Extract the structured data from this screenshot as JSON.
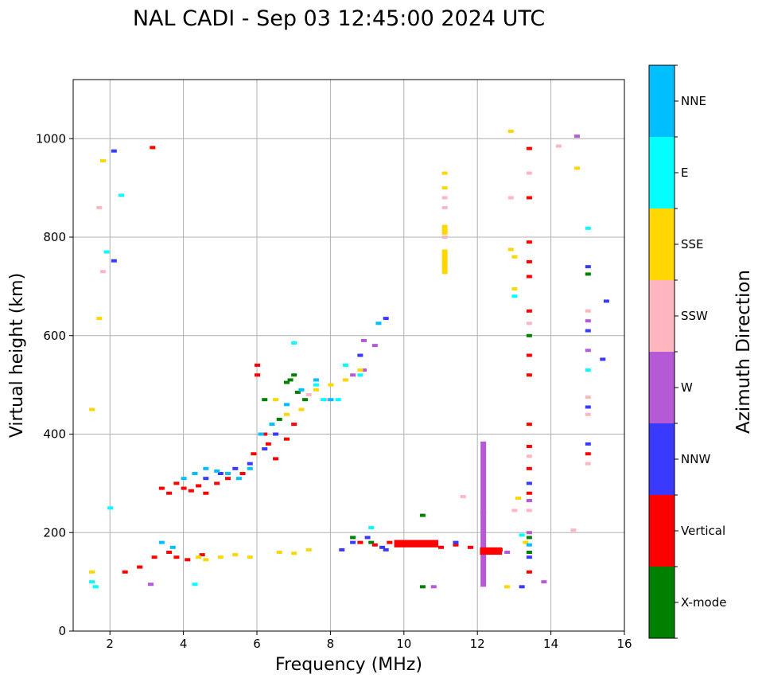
{
  "chart_data": {
    "type": "scatter",
    "title": "NAL CADI - Sep 03 12:45:00 2024 UTC",
    "xlabel": "Frequency (MHz)",
    "ylabel": "Virtual height (km)",
    "xlim": [
      1,
      16
    ],
    "ylim": [
      0,
      1120
    ],
    "xticks": [
      2,
      4,
      6,
      8,
      10,
      12,
      14,
      16
    ],
    "yticks": [
      0,
      200,
      400,
      600,
      800,
      1000
    ],
    "grid": true,
    "colorbar": {
      "title": "Azimuth Direction",
      "categories": [
        {
          "label": "X-mode",
          "color": "#008000"
        },
        {
          "label": "Vertical",
          "color": "#ff0000"
        },
        {
          "label": "NNW",
          "color": "#3a3aff"
        },
        {
          "label": "W",
          "color": "#b659d6"
        },
        {
          "label": "SSW",
          "color": "#ffb6c1"
        },
        {
          "label": "SSE",
          "color": "#ffd700"
        },
        {
          "label": "E",
          "color": "#00ffff"
        },
        {
          "label": "NNE",
          "color": "#00bfff"
        }
      ]
    },
    "series": [
      {
        "name": "X-mode",
        "points": [
          [
            6.2,
            470
          ],
          [
            6.9,
            510
          ],
          [
            7.1,
            485
          ],
          [
            7.3,
            470
          ],
          [
            7.0,
            520
          ],
          [
            6.8,
            505
          ],
          [
            10.5,
            235
          ],
          [
            10.5,
            90
          ],
          [
            13.4,
            600
          ],
          [
            13.4,
            160
          ],
          [
            13.4,
            190
          ],
          [
            15.0,
            725
          ],
          [
            6.6,
            430
          ],
          [
            8.6,
            190
          ],
          [
            9.1,
            180
          ]
        ]
      },
      {
        "name": "Vertical",
        "points": [
          [
            3.4,
            290
          ],
          [
            3.6,
            280
          ],
          [
            3.8,
            300
          ],
          [
            4.0,
            290
          ],
          [
            4.2,
            285
          ],
          [
            4.4,
            295
          ],
          [
            4.6,
            280
          ],
          [
            4.9,
            300
          ],
          [
            5.2,
            310
          ],
          [
            5.6,
            320
          ],
          [
            5.9,
            360
          ],
          [
            6.0,
            520
          ],
          [
            6.0,
            540
          ],
          [
            6.2,
            400
          ],
          [
            6.3,
            380
          ],
          [
            6.5,
            350
          ],
          [
            6.8,
            390
          ],
          [
            7.0,
            420
          ],
          [
            2.4,
            120
          ],
          [
            2.8,
            130
          ],
          [
            3.2,
            150
          ],
          [
            3.6,
            160
          ],
          [
            3.8,
            150
          ],
          [
            4.1,
            145
          ],
          [
            4.5,
            155
          ],
          [
            8.8,
            180
          ],
          [
            9.2,
            175
          ],
          [
            9.6,
            180
          ],
          [
            10.0,
            178
          ],
          [
            10.4,
            175
          ],
          [
            11.0,
            170
          ],
          [
            11.4,
            175
          ],
          [
            11.8,
            170
          ],
          [
            12.2,
            165
          ],
          [
            12.6,
            165
          ],
          [
            13.4,
            980
          ],
          [
            13.4,
            880
          ],
          [
            13.4,
            790
          ],
          [
            13.4,
            750
          ],
          [
            13.4,
            720
          ],
          [
            13.4,
            650
          ],
          [
            13.4,
            560
          ],
          [
            13.4,
            520
          ],
          [
            13.4,
            420
          ],
          [
            13.4,
            375
          ],
          [
            13.4,
            330
          ],
          [
            13.4,
            280
          ],
          [
            13.4,
            120
          ],
          [
            15.0,
            360
          ],
          [
            3.15,
            982
          ]
        ]
      },
      {
        "name": "NNW",
        "points": [
          [
            4.6,
            310
          ],
          [
            5.0,
            320
          ],
          [
            5.4,
            330
          ],
          [
            5.8,
            340
          ],
          [
            6.2,
            370
          ],
          [
            6.5,
            400
          ],
          [
            8.6,
            180
          ],
          [
            9.0,
            190
          ],
          [
            9.4,
            170
          ],
          [
            8.3,
            165
          ],
          [
            8.8,
            560
          ],
          [
            9.5,
            635
          ],
          [
            2.1,
            975
          ],
          [
            2.1,
            752
          ],
          [
            13.4,
            300
          ],
          [
            13.4,
            150
          ],
          [
            15.0,
            740
          ],
          [
            15.0,
            610
          ],
          [
            15.0,
            455
          ],
          [
            15.0,
            380
          ],
          [
            15.4,
            552
          ],
          [
            15.5,
            670
          ],
          [
            9.5,
            165
          ],
          [
            10.2,
            180
          ],
          [
            11.4,
            180
          ],
          [
            13.2,
            90
          ]
        ]
      },
      {
        "name": "W",
        "points": [
          [
            12.15,
            240
          ],
          [
            8.9,
            590
          ],
          [
            9.2,
            580
          ],
          [
            8.6,
            520
          ],
          [
            8.9,
            530
          ],
          [
            13.4,
            265
          ],
          [
            13.4,
            200
          ],
          [
            14.7,
            1005
          ],
          [
            15.0,
            630
          ],
          [
            15.0,
            570
          ],
          [
            13.8,
            100
          ],
          [
            12.8,
            160
          ],
          [
            3.1,
            95
          ],
          [
            10.8,
            90
          ]
        ]
      },
      {
        "name": "SSW",
        "points": [
          [
            11.1,
            800
          ],
          [
            11.1,
            880
          ],
          [
            11.1,
            860
          ],
          [
            12.9,
            880
          ],
          [
            13.0,
            245
          ],
          [
            13.4,
            930
          ],
          [
            13.4,
            625
          ],
          [
            13.4,
            355
          ],
          [
            13.4,
            245
          ],
          [
            14.2,
            985
          ],
          [
            14.6,
            205
          ],
          [
            15.0,
            650
          ],
          [
            15.0,
            475
          ],
          [
            15.0,
            440
          ],
          [
            15.0,
            340
          ],
          [
            11.6,
            273
          ],
          [
            7.9,
            470
          ],
          [
            7.4,
            480
          ],
          [
            1.7,
            860
          ],
          [
            1.8,
            730
          ]
        ]
      },
      {
        "name": "SSE",
        "points": [
          [
            11.1,
            750
          ],
          [
            11.1,
            810
          ],
          [
            11.1,
            900
          ],
          [
            11.1,
            930
          ],
          [
            12.9,
            1015
          ],
          [
            12.9,
            775
          ],
          [
            13.0,
            760
          ],
          [
            13.0,
            695
          ],
          [
            13.3,
            180
          ],
          [
            13.1,
            270
          ],
          [
            12.8,
            90
          ],
          [
            14.7,
            940
          ],
          [
            4.4,
            150
          ],
          [
            4.6,
            145
          ],
          [
            5.0,
            150
          ],
          [
            5.4,
            155
          ],
          [
            5.8,
            150
          ],
          [
            6.6,
            160
          ],
          [
            7.0,
            158
          ],
          [
            7.4,
            165
          ],
          [
            6.5,
            470
          ],
          [
            6.8,
            440
          ],
          [
            7.2,
            450
          ],
          [
            7.6,
            490
          ],
          [
            8.0,
            500
          ],
          [
            8.4,
            510
          ],
          [
            8.8,
            530
          ],
          [
            1.5,
            450
          ],
          [
            1.8,
            955
          ],
          [
            1.7,
            635
          ],
          [
            1.5,
            120
          ]
        ]
      },
      {
        "name": "E",
        "points": [
          [
            2.3,
            885
          ],
          [
            1.9,
            770
          ],
          [
            2.0,
            250
          ],
          [
            4.3,
            95
          ],
          [
            7.0,
            585
          ],
          [
            7.6,
            500
          ],
          [
            7.8,
            470
          ],
          [
            8.2,
            470
          ],
          [
            8.4,
            540
          ],
          [
            8.8,
            520
          ],
          [
            9.1,
            210
          ],
          [
            13.0,
            680
          ],
          [
            15.0,
            818
          ],
          [
            15.0,
            530
          ],
          [
            1.5,
            100
          ],
          [
            1.6,
            90
          ],
          [
            13.2,
            195
          ]
        ]
      },
      {
        "name": "NNE",
        "points": [
          [
            4.0,
            310
          ],
          [
            4.3,
            320
          ],
          [
            4.6,
            330
          ],
          [
            4.9,
            325
          ],
          [
            5.2,
            320
          ],
          [
            5.5,
            310
          ],
          [
            5.8,
            330
          ],
          [
            6.1,
            400
          ],
          [
            6.4,
            420
          ],
          [
            6.8,
            460
          ],
          [
            7.2,
            490
          ],
          [
            7.6,
            510
          ],
          [
            8.0,
            470
          ],
          [
            3.4,
            180
          ],
          [
            3.7,
            170
          ],
          [
            9.3,
            625
          ],
          [
            13.4,
            175
          ]
        ]
      }
    ]
  }
}
